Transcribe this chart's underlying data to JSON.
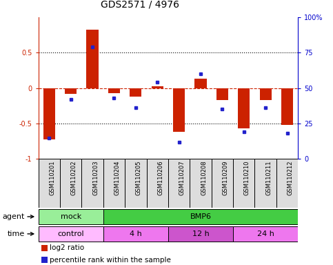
{
  "title": "GDS2571 / 4976",
  "samples": [
    "GSM110201",
    "GSM110202",
    "GSM110203",
    "GSM110204",
    "GSM110205",
    "GSM110206",
    "GSM110207",
    "GSM110208",
    "GSM110209",
    "GSM110210",
    "GSM110211",
    "GSM110212"
  ],
  "log2_ratio": [
    -0.72,
    -0.08,
    0.82,
    -0.07,
    -0.12,
    0.03,
    -0.62,
    0.13,
    -0.17,
    -0.57,
    -0.17,
    -0.52
  ],
  "percentile": [
    15,
    42,
    79,
    43,
    36,
    54,
    12,
    60,
    35,
    19,
    36,
    18
  ],
  "ylim": [
    -1,
    1
  ],
  "bar_color": "#cc2200",
  "dot_color": "#2222cc",
  "bar_width": 0.55,
  "agent_labels": [
    {
      "label": "mock",
      "start": 0,
      "end": 3,
      "color": "#99ee99"
    },
    {
      "label": "BMP6",
      "start": 3,
      "end": 12,
      "color": "#44cc44"
    }
  ],
  "time_labels": [
    {
      "label": "control",
      "start": 0,
      "end": 3,
      "color": "#ffbbff"
    },
    {
      "label": "4 h",
      "start": 3,
      "end": 6,
      "color": "#ee77ee"
    },
    {
      "label": "12 h",
      "start": 6,
      "end": 9,
      "color": "#cc55cc"
    },
    {
      "label": "24 h",
      "start": 9,
      "end": 12,
      "color": "#ee77ee"
    }
  ],
  "legend_red_label": "log2 ratio",
  "legend_blue_label": "percentile rank within the sample",
  "left_color": "#cc2200",
  "right_color": "#0000cc",
  "label_bg": "#dddddd",
  "tick_label_size": 7,
  "title_fontsize": 10,
  "agent_row_label": "agent",
  "time_row_label": "time"
}
